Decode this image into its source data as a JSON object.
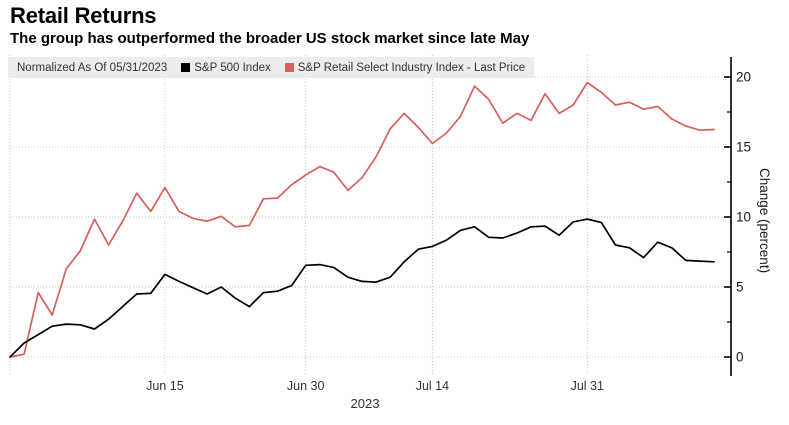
{
  "header": {
    "title": "Retail Returns",
    "subtitle": "The group has outperformed the broader US stock market since late May"
  },
  "legend": {
    "note": "Normalized As Of 05/31/2023",
    "items": [
      {
        "label": "S&P 500 Index",
        "color": "#000000"
      },
      {
        "label": "S&P Retail Select Industry Index - Last Price",
        "color": "#d6605c"
      }
    ]
  },
  "chart_data": {
    "type": "line",
    "title": "Retail Returns",
    "xlabel": "2023",
    "ylabel": "Change (percent)",
    "ylim": [
      -0.5,
      21.5
    ],
    "y_ticks": [
      0,
      5,
      10,
      15,
      20
    ],
    "y_minor_ticks": [
      2.5,
      7.5,
      12.5,
      17.5
    ],
    "grid": "dotted",
    "legend_position": "top",
    "x_start_label": "05/31/2023",
    "x_tick_labels": [
      "Jun 15",
      "Jun 30",
      "Jul 14",
      "Jul 31"
    ],
    "x_tick_indices": [
      11,
      21,
      30,
      41
    ],
    "x_point_count": 51,
    "series": [
      {
        "name": "S&P Retail Select Industry Index - Last Price",
        "color": "#d6605c",
        "values": [
          0,
          0.2,
          4.6,
          3.0,
          6.3,
          7.6,
          9.85,
          8.0,
          9.7,
          11.7,
          10.4,
          12.1,
          10.4,
          9.9,
          9.7,
          10.05,
          9.3,
          9.4,
          11.3,
          11.35,
          12.3,
          13.0,
          13.6,
          13.2,
          11.9,
          12.8,
          14.3,
          16.3,
          17.4,
          16.4,
          15.25,
          16.0,
          17.2,
          19.35,
          18.4,
          16.7,
          17.4,
          16.9,
          18.8,
          17.4,
          18.0,
          19.6,
          18.9,
          18.0,
          18.2,
          17.7,
          17.9,
          17.0,
          16.5,
          16.2,
          16.25
        ]
      },
      {
        "name": "S&P 500 Index",
        "color": "#000000",
        "values": [
          0,
          1.0,
          1.6,
          2.2,
          2.35,
          2.3,
          2.0,
          2.7,
          3.6,
          4.5,
          4.55,
          5.9,
          5.4,
          4.95,
          4.5,
          5.0,
          4.2,
          3.6,
          4.6,
          4.7,
          5.1,
          6.55,
          6.6,
          6.4,
          5.7,
          5.4,
          5.35,
          5.7,
          6.8,
          7.7,
          7.9,
          8.35,
          9.05,
          9.3,
          8.55,
          8.5,
          8.85,
          9.3,
          9.35,
          8.7,
          9.65,
          9.85,
          9.6,
          8.0,
          7.8,
          7.1,
          8.2,
          7.8,
          6.9,
          6.85,
          6.8
        ]
      }
    ]
  },
  "axis": {
    "year_label": "2023",
    "grid_color": "#c3c3c3",
    "axis_color": "#000000",
    "tick_label_color": "#1a1a1a",
    "date_label_color": "#333333"
  }
}
